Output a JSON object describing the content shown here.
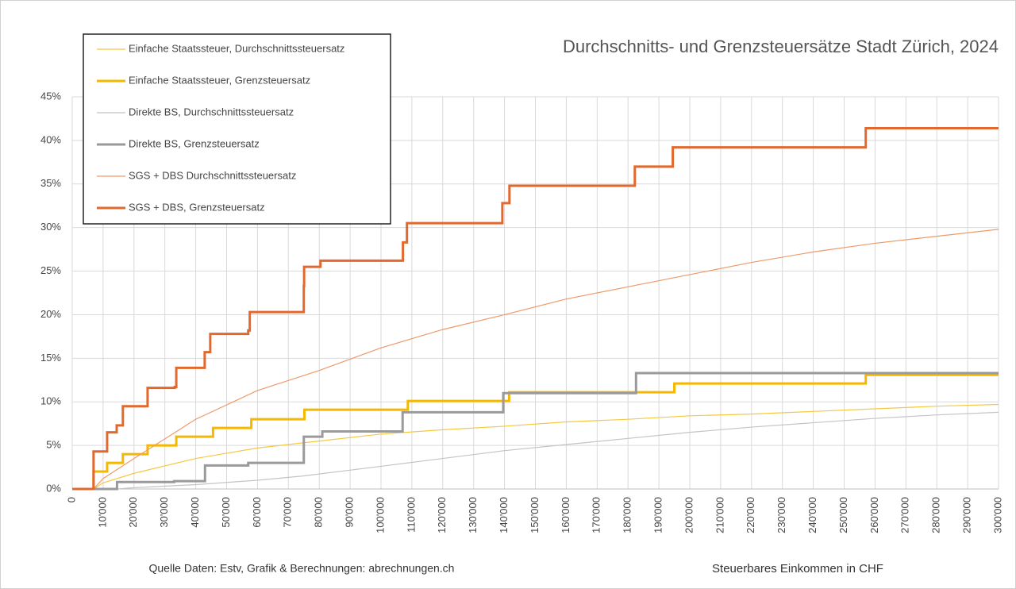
{
  "chart_data": {
    "type": "line",
    "title": "Durchschnitts- und Grenzsteuersätze Stadt Zürich, 2024",
    "xlabel": "Steuerbares  Einkommen  in CHF",
    "source": "Quelle Daten:  Estv, Grafik & Berechnungen:  abrechnungen.ch",
    "xlim": [
      0,
      300000
    ],
    "ylim": [
      0,
      45
    ],
    "grid": true,
    "legend": "upper left",
    "xticks": [
      0,
      {
        "value": 10000,
        "label": "10'000"
      },
      {
        "value": 20000,
        "label": "20'000"
      },
      {
        "value": 30000,
        "label": "30'000"
      },
      {
        "value": 40000,
        "label": "40'000"
      },
      {
        "value": 50000,
        "label": "50'000"
      },
      {
        "value": 60000,
        "label": "60'000"
      },
      {
        "value": 70000,
        "label": "70'000"
      },
      {
        "value": 80000,
        "label": "80'000"
      },
      {
        "value": 90000,
        "label": "90'000"
      },
      {
        "value": 100000,
        "label": "100'000"
      },
      {
        "value": 110000,
        "label": "110'000"
      },
      {
        "value": 120000,
        "label": "120'000"
      },
      {
        "value": 130000,
        "label": "130'000"
      },
      {
        "value": 140000,
        "label": "140'000"
      },
      {
        "value": 150000,
        "label": "150'000"
      },
      {
        "value": 160000,
        "label": "160'000"
      },
      {
        "value": 170000,
        "label": "170'000"
      },
      {
        "value": 180000,
        "label": "180'000"
      },
      {
        "value": 190000,
        "label": "190'000"
      },
      {
        "value": 200000,
        "label": "200'000"
      },
      {
        "value": 210000,
        "label": "210'000"
      },
      {
        "value": 220000,
        "label": "220'000"
      },
      {
        "value": 230000,
        "label": "230'000"
      },
      {
        "value": 240000,
        "label": "240'000"
      },
      {
        "value": 250000,
        "label": "250'000"
      },
      {
        "value": 260000,
        "label": "260'000"
      },
      {
        "value": 270000,
        "label": "270'000"
      },
      {
        "value": 280000,
        "label": "280'000"
      },
      {
        "value": 290000,
        "label": "290'000"
      },
      {
        "value": 300000,
        "label": "300'000"
      }
    ],
    "yticks": [
      {
        "value": 0,
        "label": "0%"
      },
      {
        "value": 5,
        "label": "5%"
      },
      {
        "value": 10,
        "label": "10%"
      },
      {
        "value": 15,
        "label": "15%"
      },
      {
        "value": 20,
        "label": "20%"
      },
      {
        "value": 25,
        "label": "25%"
      },
      {
        "value": 30,
        "label": "30%"
      },
      {
        "value": 35,
        "label": "35%"
      },
      {
        "value": 40,
        "label": "40%"
      },
      {
        "value": 45,
        "label": "45%"
      }
    ],
    "series": [
      {
        "name": "Einfache Staatssteuer, Durchschnittssteuersatz",
        "color": "#f5c842",
        "line_width": 1.2,
        "x": [
          0,
          6900,
          10000,
          20000,
          40000,
          60000,
          80000,
          100000,
          120000,
          140000,
          160000,
          180000,
          200000,
          220000,
          240000,
          260000,
          280000,
          300000
        ],
        "values": [
          0,
          0,
          0.7,
          1.8,
          3.5,
          4.7,
          5.5,
          6.3,
          6.8,
          7.2,
          7.7,
          8.0,
          8.4,
          8.6,
          8.9,
          9.2,
          9.5,
          9.7
        ]
      },
      {
        "name": "Einfache Staatssteuer, Grenzsteuersatz",
        "color": "#f5b800",
        "line_width": 3,
        "x": [
          0,
          6900,
          6900,
          11300,
          11300,
          16400,
          16400,
          24400,
          24400,
          33700,
          33700,
          45600,
          45600,
          58000,
          58000,
          75200,
          75200,
          108700,
          108700,
          141500,
          141500,
          195000,
          195000,
          257000,
          257000,
          300000
        ],
        "values": [
          0,
          0,
          2,
          2,
          3,
          3,
          4,
          4,
          5,
          5,
          6,
          6,
          7,
          7,
          8,
          8,
          9.1,
          9.1,
          10.1,
          10.1,
          11.1,
          11.1,
          12.1,
          12.1,
          13.1,
          13.1
        ]
      },
      {
        "name": "Direkte BS, Durchschnittssteuersatz",
        "color": "#c4c4c4",
        "line_width": 1.2,
        "x": [
          0,
          14500,
          20000,
          40000,
          60000,
          75000,
          100000,
          120000,
          140000,
          160000,
          180000,
          200000,
          220000,
          240000,
          260000,
          280000,
          300000
        ],
        "values": [
          0,
          0,
          0.15,
          0.5,
          1.0,
          1.5,
          2.6,
          3.5,
          4.4,
          5.1,
          5.8,
          6.5,
          7.1,
          7.6,
          8.1,
          8.5,
          8.8
        ]
      },
      {
        "name": "Direkte BS, Grenzsteuersatz",
        "color": "#9a9a9a",
        "line_width": 3,
        "x": [
          0,
          14500,
          14500,
          33000,
          33000,
          43000,
          43000,
          57000,
          57000,
          75000,
          75000,
          81000,
          81000,
          107000,
          107000,
          139600,
          139600,
          182600,
          182600,
          300000
        ],
        "values": [
          0,
          0,
          0.8,
          0.8,
          0.9,
          0.9,
          2.7,
          2.7,
          3.0,
          3.0,
          6.0,
          6.0,
          6.6,
          6.6,
          8.8,
          8.8,
          11.0,
          11.0,
          13.3,
          13.3
        ]
      },
      {
        "name": "SGS + DBS  Durchschnittssteuersatz",
        "color": "#ee9a6a",
        "line_width": 1.2,
        "x": [
          0,
          6900,
          10000,
          20000,
          40000,
          60000,
          80000,
          100000,
          120000,
          140000,
          160000,
          180000,
          200000,
          220000,
          240000,
          260000,
          280000,
          300000
        ],
        "values": [
          0,
          0,
          1.2,
          3.5,
          8,
          11.3,
          13.6,
          16.2,
          18.3,
          20,
          21.8,
          23.2,
          24.6,
          26,
          27.2,
          28.2,
          29,
          29.8
        ]
      },
      {
        "name": "SGS + DBS, Grenzsteuersatz",
        "color": "#e2692e",
        "line_width": 3,
        "x": [
          0,
          6900,
          6900,
          11300,
          11300,
          14400,
          14400,
          16400,
          16400,
          24400,
          24400,
          33200,
          33200,
          33700,
          33700,
          42900,
          42900,
          44700,
          44700,
          57000,
          57000,
          57500,
          57500,
          75000,
          75000,
          75100,
          75100,
          80400,
          80400,
          107100,
          107100,
          108400,
          108400,
          139300,
          139300,
          141600,
          141600,
          182200,
          182200,
          194500,
          194500,
          257000,
          257000,
          300000
        ],
        "values": [
          0,
          0,
          4.3,
          4.3,
          6.5,
          6.5,
          7.3,
          7.3,
          9.5,
          9.5,
          11.6,
          11.6,
          11.7,
          11.7,
          13.9,
          13.9,
          15.7,
          15.7,
          17.8,
          17.8,
          18.2,
          18.2,
          20.3,
          20.3,
          23.3,
          23.3,
          25.5,
          25.5,
          26.2,
          26.2,
          28.3,
          28.3,
          30.5,
          30.5,
          32.8,
          32.8,
          34.8,
          34.8,
          37.0,
          37.0,
          39.2,
          39.2,
          41.4,
          41.4
        ]
      }
    ]
  }
}
